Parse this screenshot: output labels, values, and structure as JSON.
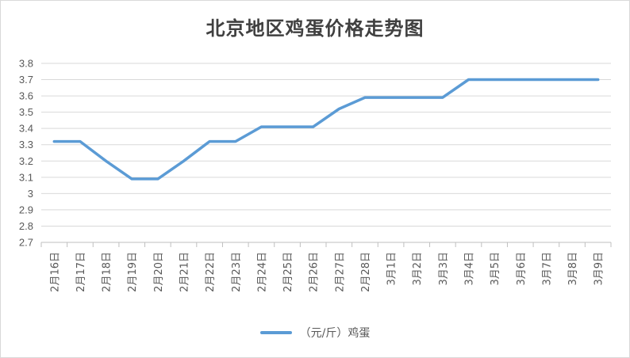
{
  "chart_data": {
    "type": "line",
    "title": "北京地区鸡蛋价格走势图",
    "categories": [
      "2月16日",
      "2月17日",
      "2月18日",
      "2月19日",
      "2月20日",
      "2月21日",
      "2月22日",
      "2月23日",
      "2月24日",
      "2月25日",
      "2月26日",
      "2月27日",
      "2月28日",
      "3月1日",
      "3月2日",
      "3月3日",
      "3月4日",
      "3月5日",
      "3月6日",
      "3月7日",
      "3月8日",
      "3月9日"
    ],
    "series": [
      {
        "name": "（元/斤）鸡蛋",
        "color": "#5b9bd5",
        "values": [
          3.32,
          3.32,
          3.2,
          3.09,
          3.09,
          3.2,
          3.32,
          3.32,
          3.41,
          3.41,
          3.41,
          3.52,
          3.59,
          3.59,
          3.59,
          3.59,
          3.7,
          3.7,
          3.7,
          3.7,
          3.7,
          3.7
        ]
      }
    ],
    "yticks": [
      "2.7",
      "2.8",
      "2.9",
      "3",
      "3.1",
      "3.2",
      "3.3",
      "3.4",
      "3.5",
      "3.6",
      "3.7",
      "3.8"
    ],
    "ylim": [
      2.7,
      3.8
    ],
    "grid": true,
    "legend": "bottom"
  }
}
